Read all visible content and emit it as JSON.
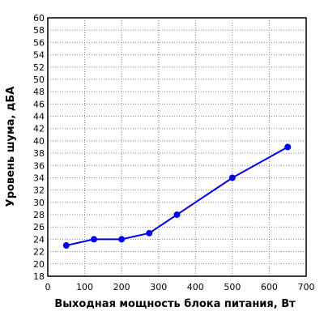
{
  "chart_data": {
    "type": "line",
    "title": "",
    "xlabel": "Выходная мощность блока питания, Вт",
    "ylabel": "Уровень шума, дБА",
    "xlim": [
      0,
      700
    ],
    "ylim": [
      18,
      60
    ],
    "x_ticks": [
      0,
      100,
      200,
      300,
      400,
      500,
      600,
      700
    ],
    "y_ticks": [
      18,
      20,
      22,
      24,
      26,
      28,
      30,
      32,
      34,
      36,
      38,
      40,
      42,
      44,
      46,
      48,
      50,
      52,
      54,
      56,
      58,
      60
    ],
    "grid": true,
    "legend": "none",
    "line_color": "#0000e6",
    "series": [
      {
        "x": [
          50,
          125,
          200,
          275,
          350,
          500,
          650
        ],
        "y": [
          23,
          24,
          24,
          25,
          28,
          34,
          39
        ]
      }
    ]
  }
}
